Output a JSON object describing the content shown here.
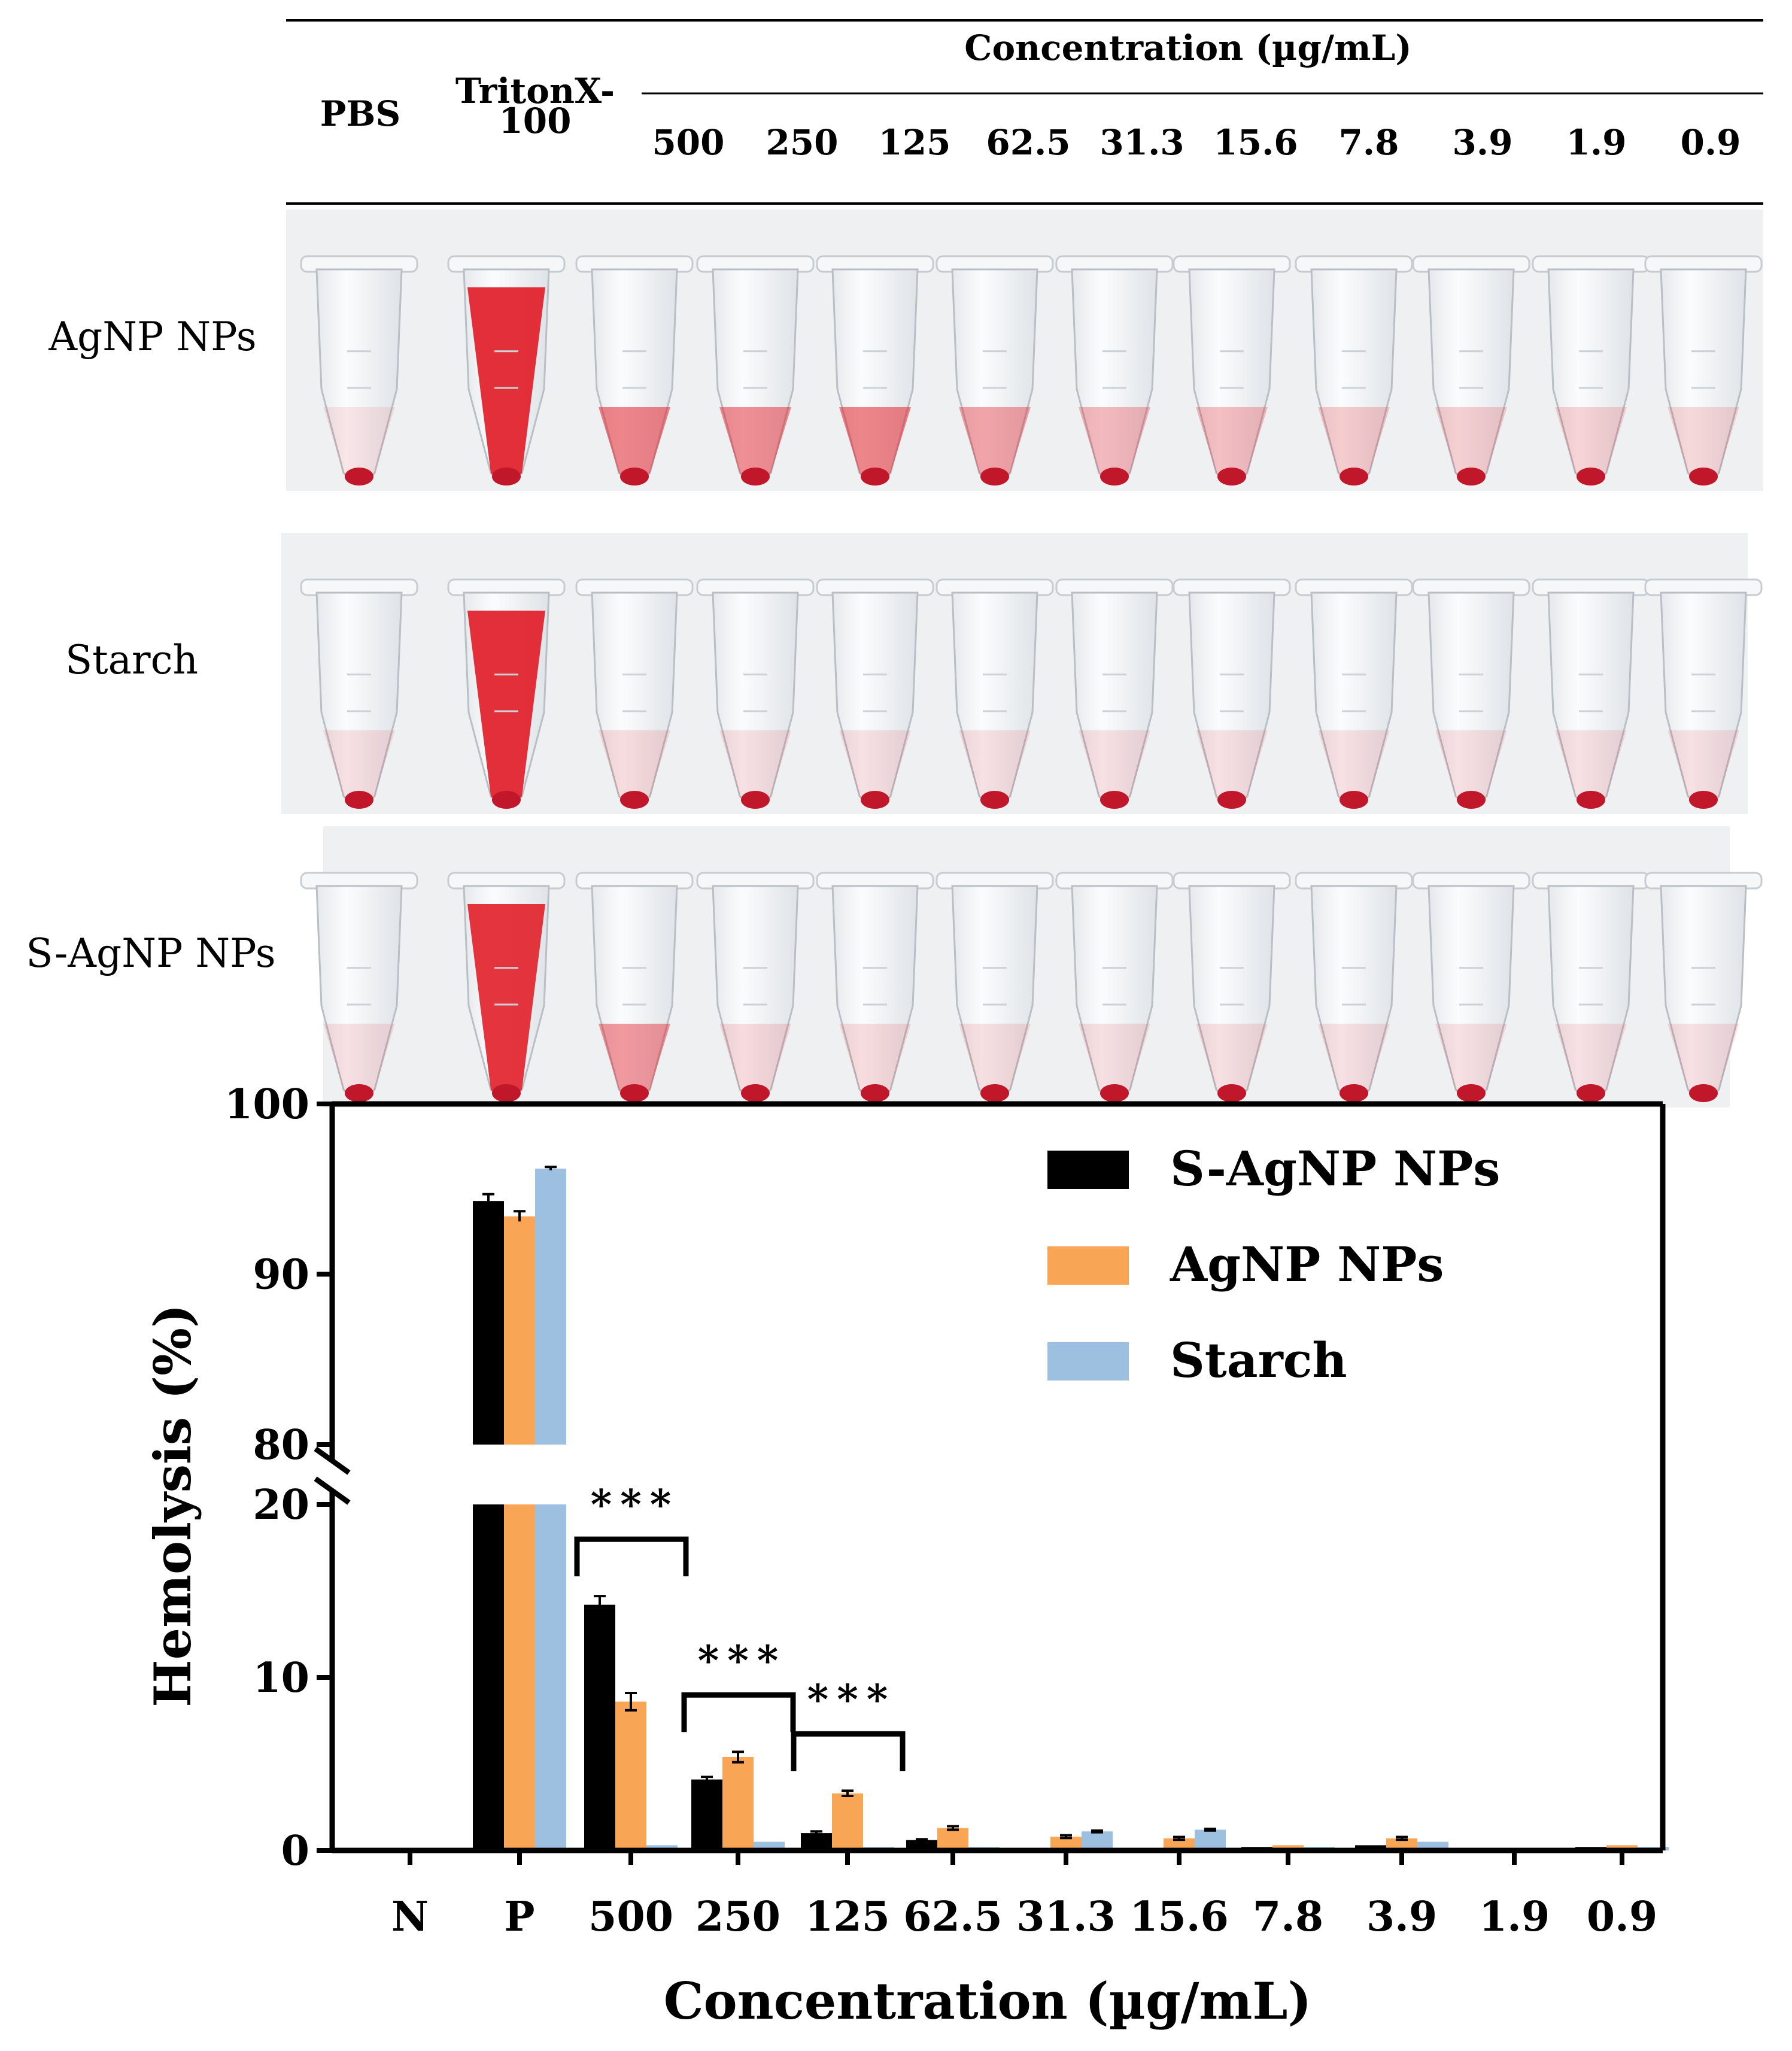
{
  "table_header": {
    "col_pbs": "PBS",
    "col_triton_line1": "TritonX-",
    "col_triton_line2": "100",
    "concentration_title": "Concentration (µg/mL)",
    "concentrations": [
      "500",
      "250",
      "125",
      "62.5",
      "31.3",
      "15.6",
      "7.8",
      "3.9",
      "1.9",
      "0.9"
    ]
  },
  "photo_rows": [
    {
      "label": "AgNP NPs",
      "liquid_alpha": [
        0.1,
        0.95,
        0.55,
        0.5,
        0.55,
        0.4,
        0.3,
        0.28,
        0.22,
        0.2,
        0.18,
        0.16
      ]
    },
    {
      "label": "Starch",
      "liquid_alpha": [
        0.12,
        0.95,
        0.14,
        0.12,
        0.12,
        0.12,
        0.12,
        0.12,
        0.12,
        0.12,
        0.12,
        0.12
      ]
    },
    {
      "label": "S-AgNP NPs",
      "liquid_alpha": [
        0.12,
        0.92,
        0.45,
        0.15,
        0.14,
        0.13,
        0.13,
        0.13,
        0.12,
        0.12,
        0.12,
        0.12
      ]
    }
  ],
  "chart_data": {
    "type": "bar",
    "categories": [
      "N",
      "P",
      "500",
      "250",
      "125",
      "62.5",
      "31.3",
      "15.6",
      "7.8",
      "3.9",
      "1.9",
      "0.9"
    ],
    "series": [
      {
        "name": "S-AgNP NPs",
        "color": "#000000",
        "values": [
          0,
          94.3,
          14.2,
          4.1,
          1.0,
          0.6,
          0.1,
          0.1,
          0.2,
          0.3,
          0.0,
          0.2
        ],
        "errors": [
          0,
          0.4,
          0.5,
          0.15,
          0.1,
          0.05,
          0.03,
          0.03,
          0.03,
          0.05,
          0,
          0.03
        ]
      },
      {
        "name": "AgNP NPs",
        "color": "#F9A556",
        "values": [
          0,
          93.4,
          8.6,
          5.4,
          3.3,
          1.3,
          0.8,
          0.7,
          0.3,
          0.7,
          0.0,
          0.3
        ],
        "errors": [
          0,
          0.3,
          0.5,
          0.3,
          0.15,
          0.1,
          0.08,
          0.08,
          0.05,
          0.08,
          0,
          0.05
        ]
      },
      {
        "name": "Starch",
        "color": "#9DBFE0",
        "values": [
          0,
          96.2,
          0.3,
          0.5,
          0.2,
          0.2,
          1.1,
          1.2,
          0.2,
          0.5,
          0.0,
          0.2
        ],
        "errors": [
          0,
          0.1,
          0.03,
          0.05,
          0.03,
          0.03,
          0.05,
          0.05,
          0.03,
          0.05,
          0,
          0.03
        ]
      }
    ],
    "xlabel": "Concentration (µg/mL)",
    "ylabel": "Hemolysis (%)",
    "y_segments": [
      [
        0,
        20
      ],
      [
        80,
        100
      ]
    ],
    "yticks_lower": [
      "0",
      "10",
      "20"
    ],
    "yticks_upper": [
      "80",
      "90",
      "100"
    ],
    "significance": [
      {
        "category": "500",
        "label": "***"
      },
      {
        "category": "250",
        "label": "***"
      },
      {
        "category": "125",
        "label": "***"
      }
    ],
    "legend_position": "top-right"
  }
}
